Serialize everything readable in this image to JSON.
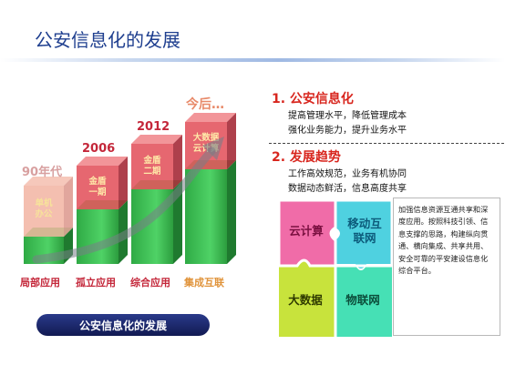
{
  "title": "公安信息化的发展",
  "timeline": {
    "eras": [
      "90年代",
      "2006",
      "2012",
      "今后…"
    ],
    "cube_labels": [
      [
        "单机",
        "办公"
      ],
      [
        "金盾",
        "一期"
      ],
      [
        "金盾",
        "二期"
      ],
      [
        "大数据",
        "云计算"
      ]
    ],
    "bar_labels": [
      "局部应用",
      "孤立应用",
      "综合应用",
      "集成互联"
    ],
    "caption": "公安信息化的发展"
  },
  "sections": [
    {
      "heading": "1. 公安信息化",
      "lines": [
        "提高管理水平，降低管理成本",
        "强化业务能力，提升业务水平"
      ]
    },
    {
      "heading": "2. 发展趋势",
      "lines": [
        "工作高效规范，业务有机协同",
        "数据动态鲜活，信息高度共享"
      ]
    }
  ],
  "puzzle": {
    "pieces": [
      "云计算",
      "移动互联网",
      "大数据",
      "物联网"
    ],
    "colors": [
      "#f06ca8",
      "#4fd1e0",
      "#c8e33c",
      "#46e0b5"
    ]
  },
  "description": "加强信息资源互通共享和深度应用。按照科技引领、信息支撑的思路，构建纵向贯通、横向集成、共享共用、安全可靠的平安建设信息化综合平台。"
}
